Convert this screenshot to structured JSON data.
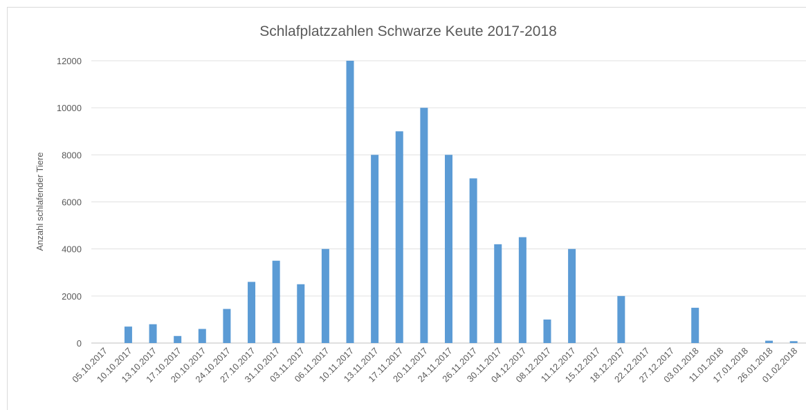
{
  "chart_data": {
    "type": "bar",
    "title": "Schlafplatzzahlen Schwarze Keute 2017-2018",
    "y_label": "Anzahl schlafender Tiere",
    "categories": [
      "05.10.2017",
      "10.10.2017",
      "13.10.2017",
      "17.10.2017",
      "20.10.2017",
      "24.10.2017",
      "27.10.2017",
      "31.10.2017",
      "03.11.2017",
      "06.11.2017",
      "10.11.2017",
      "13.11.2017",
      "17.11.2017",
      "20.11.2017",
      "24.11.2017",
      "26.11.2017",
      "30.11.2017",
      "04.12.2017",
      "08.12.2017",
      "11.12.2017",
      "15.12.2017",
      "18.12.2017",
      "22.12.2017",
      "27.12.2017",
      "03.01.2018",
      "11.01.2018",
      "17.01.2018",
      "26.01.2018",
      "01.02.2018"
    ],
    "values": [
      0,
      700,
      800,
      300,
      600,
      1450,
      2600,
      3500,
      2500,
      4000,
      12000,
      8000,
      9000,
      10000,
      8000,
      7000,
      4200,
      4500,
      1000,
      4000,
      0,
      2000,
      0,
      0,
      1500,
      0,
      0,
      100,
      80
    ],
    "color": "#5b9bd5",
    "ylim": [
      0,
      12000
    ],
    "yticks": [
      0,
      2000,
      4000,
      6000,
      8000,
      10000,
      12000
    ],
    "grid": true
  }
}
